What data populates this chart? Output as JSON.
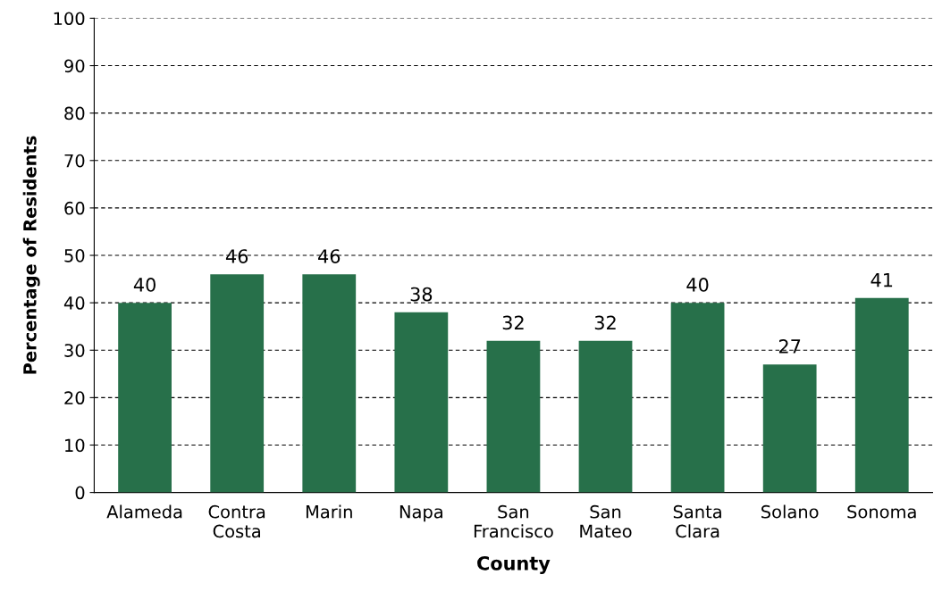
{
  "chart_data": {
    "type": "bar",
    "xlabel": "County",
    "ylabel": "Percentage of Residents",
    "categories": [
      "Alameda",
      "Contra\nCosta",
      "Marin",
      "Napa",
      "San\nFrancisco",
      "San\nMateo",
      "Santa\nClara",
      "Solano",
      "Sonoma"
    ],
    "values": [
      40,
      46,
      46,
      38,
      32,
      32,
      40,
      27,
      41
    ],
    "color": "#27704a",
    "ylim": [
      0,
      100
    ],
    "yticks": [
      0,
      10,
      20,
      30,
      40,
      50,
      60,
      70,
      80,
      90,
      100
    ],
    "grid": "y",
    "data_labels": true
  }
}
